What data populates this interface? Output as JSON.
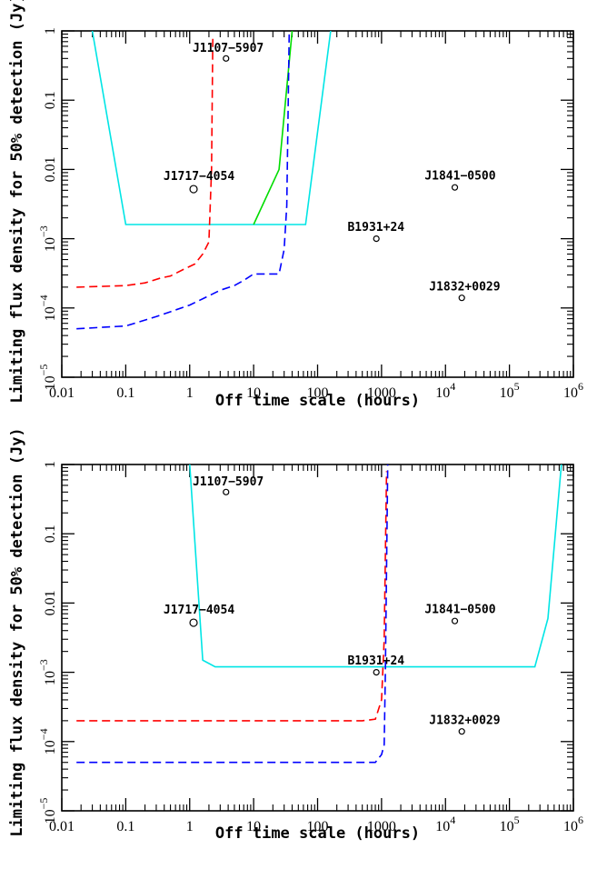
{
  "chart_data": [
    {
      "type": "line",
      "xlabel": "Off time scale (hours)",
      "ylabel": "Limiting flux density for 50% detection (Jy)",
      "xscale": "log",
      "yscale": "log",
      "xlim": [
        0.01,
        1000000
      ],
      "ylim": [
        1e-05,
        1
      ],
      "x_ticks": [
        {
          "value": 0.01,
          "label": "0.01"
        },
        {
          "value": 0.1,
          "label": "0.1"
        },
        {
          "value": 1,
          "label": "1"
        },
        {
          "value": 10,
          "label": "10"
        },
        {
          "value": 100,
          "label": "100"
        },
        {
          "value": 1000,
          "label": "1000"
        },
        {
          "value": 10000,
          "label": "10",
          "exp": "4"
        },
        {
          "value": 100000,
          "label": "10",
          "exp": "5"
        },
        {
          "value": 1000000,
          "label": "10",
          "exp": "6"
        }
      ],
      "y_ticks": [
        {
          "value": 1,
          "label": "1"
        },
        {
          "value": 0.1,
          "label": "0.1"
        },
        {
          "value": 0.01,
          "label": "0.01"
        },
        {
          "value": 0.001,
          "label": "10",
          "exp": "−3"
        },
        {
          "value": 0.0001,
          "label": "10",
          "exp": "−4"
        },
        {
          "value": 1e-05,
          "label": "10",
          "exp": "−5"
        }
      ],
      "series": [
        {
          "color": "#00e5e5",
          "dash": "solid",
          "points": [
            [
              0.03,
              1
            ],
            [
              0.1,
              0.0016
            ],
            [
              65,
              0.0016
            ],
            [
              160,
              1
            ]
          ]
        },
        {
          "color": "#00dd00",
          "dash": "solid",
          "points": [
            [
              10,
              0.0016
            ],
            [
              25,
              0.01
            ],
            [
              40,
              1
            ]
          ]
        },
        {
          "color": "#ff0000",
          "dash": "dashed",
          "points": [
            [
              0.017,
              0.0002
            ],
            [
              0.1,
              0.00021
            ],
            [
              0.2,
              0.00023
            ],
            [
              0.35,
              0.00027
            ],
            [
              0.5,
              0.00029
            ],
            [
              0.8,
              0.00036
            ],
            [
              1.2,
              0.00043
            ],
            [
              1.6,
              0.0006
            ],
            [
              2,
              0.0009
            ],
            [
              2.2,
              0.01
            ],
            [
              2.3,
              0.8
            ]
          ]
        },
        {
          "color": "#0000ff",
          "dash": "dashed",
          "points": [
            [
              0.017,
              5e-05
            ],
            [
              0.1,
              5.5e-05
            ],
            [
              0.3,
              7.5e-05
            ],
            [
              1,
              0.00011
            ],
            [
              2,
              0.00015
            ],
            [
              3,
              0.00018
            ],
            [
              5,
              0.00021
            ],
            [
              7,
              0.00025
            ],
            [
              10,
              0.00031
            ],
            [
              25,
              0.00031
            ],
            [
              30,
              0.0007
            ],
            [
              33,
              0.003
            ],
            [
              36,
              1
            ]
          ]
        }
      ],
      "points": [
        {
          "name": "J1107−5907",
          "x": 3.7,
          "y": 0.4,
          "label_x": 4,
          "label_y": 0.5,
          "anchor": "middle",
          "big": false
        },
        {
          "name": "J1717−4054",
          "x": 1.15,
          "y": 0.0052,
          "label_x": 1.4,
          "label_y": 0.007,
          "anchor": "middle",
          "big": true
        },
        {
          "name": "J1841−0500",
          "x": 14000,
          "y": 0.0055,
          "label_x": 17000,
          "label_y": 0.0072,
          "anchor": "middle",
          "big": false
        },
        {
          "name": "B1931+24",
          "x": 830,
          "y": 0.001,
          "label_x": 820,
          "label_y": 0.0013,
          "anchor": "middle",
          "big": false
        },
        {
          "name": "J1832+0029",
          "x": 18000,
          "y": 0.00014,
          "label_x": 20000,
          "label_y": 0.00018,
          "anchor": "middle",
          "big": false
        }
      ]
    },
    {
      "type": "line",
      "xlabel": "Off time scale (hours)",
      "ylabel": "Limiting flux density for 50% detection (Jy)",
      "xscale": "log",
      "yscale": "log",
      "xlim": [
        0.01,
        1000000
      ],
      "ylim": [
        1e-05,
        1
      ],
      "x_ticks": [
        {
          "value": 0.01,
          "label": "0.01"
        },
        {
          "value": 0.1,
          "label": "0.1"
        },
        {
          "value": 1,
          "label": "1"
        },
        {
          "value": 10,
          "label": "10"
        },
        {
          "value": 100,
          "label": "100"
        },
        {
          "value": 1000,
          "label": "1000"
        },
        {
          "value": 10000,
          "label": "10",
          "exp": "4"
        },
        {
          "value": 100000,
          "label": "10",
          "exp": "5"
        },
        {
          "value": 1000000,
          "label": "10",
          "exp": "6"
        }
      ],
      "y_ticks": [
        {
          "value": 1,
          "label": "1"
        },
        {
          "value": 0.1,
          "label": "0.1"
        },
        {
          "value": 0.01,
          "label": "0.01"
        },
        {
          "value": 0.001,
          "label": "10",
          "exp": "−3"
        },
        {
          "value": 0.0001,
          "label": "10",
          "exp": "−4"
        },
        {
          "value": 1e-05,
          "label": "10",
          "exp": "−5"
        }
      ],
      "series": [
        {
          "color": "#00e5e5",
          "dash": "solid",
          "points": [
            [
              1,
              1
            ],
            [
              1.6,
              0.0015
            ],
            [
              2.5,
              0.0012
            ],
            [
              250000,
              0.0012
            ],
            [
              400000,
              0.006
            ],
            [
              650000,
              1
            ]
          ]
        },
        {
          "color": "#ff0000",
          "dash": "dashed",
          "points": [
            [
              0.017,
              0.0002
            ],
            [
              500,
              0.0002
            ],
            [
              800,
              0.00021
            ],
            [
              1000,
              0.0004
            ],
            [
              1100,
              0.003
            ],
            [
              1200,
              0.8
            ]
          ]
        },
        {
          "color": "#0000ff",
          "dash": "dashed",
          "points": [
            [
              0.017,
              5e-05
            ],
            [
              800,
              5e-05
            ],
            [
              1000,
              6.5e-05
            ],
            [
              1100,
              9e-05
            ],
            [
              1150,
              0.001
            ],
            [
              1250,
              1
            ]
          ]
        }
      ],
      "points": [
        {
          "name": "J1107−5907",
          "x": 3.7,
          "y": 0.4,
          "label_x": 4,
          "label_y": 0.5,
          "anchor": "middle",
          "big": false
        },
        {
          "name": "J1717−4054",
          "x": 1.15,
          "y": 0.0052,
          "label_x": 1.4,
          "label_y": 0.007,
          "anchor": "middle",
          "big": true
        },
        {
          "name": "J1841−0500",
          "x": 14000,
          "y": 0.0055,
          "label_x": 17000,
          "label_y": 0.0072,
          "anchor": "middle",
          "big": false
        },
        {
          "name": "B1931+24",
          "x": 830,
          "y": 0.001,
          "label_x": 820,
          "label_y": 0.0013,
          "anchor": "middle",
          "big": false
        },
        {
          "name": "J1832+0029",
          "x": 18000,
          "y": 0.00014,
          "label_x": 20000,
          "label_y": 0.00018,
          "anchor": "middle",
          "big": false
        }
      ]
    }
  ]
}
